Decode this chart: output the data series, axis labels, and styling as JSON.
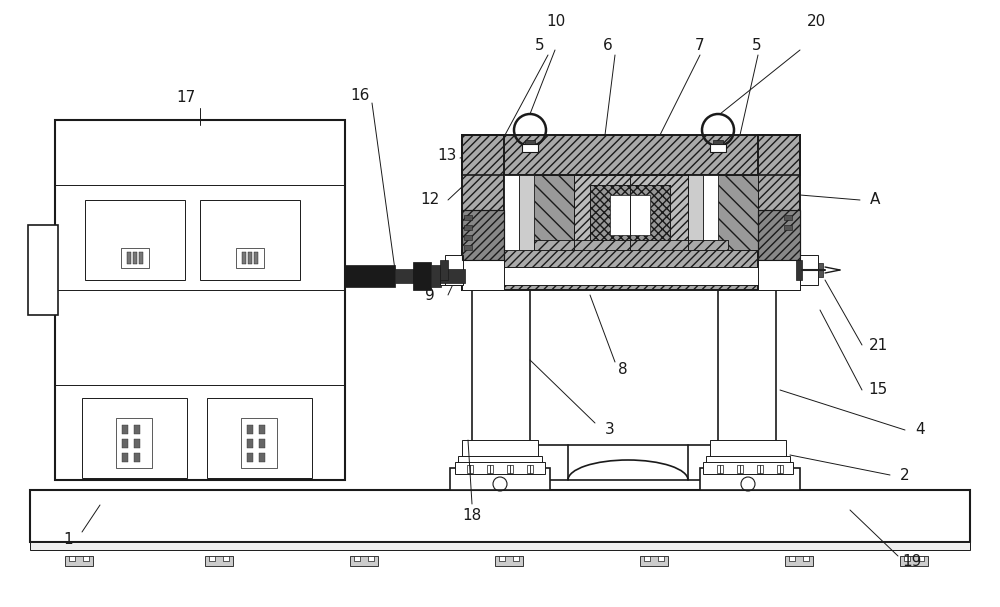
{
  "bg_color": "#ffffff",
  "lc": "#1a1a1a",
  "fig_width": 10.0,
  "fig_height": 6.07,
  "dpi": 100
}
